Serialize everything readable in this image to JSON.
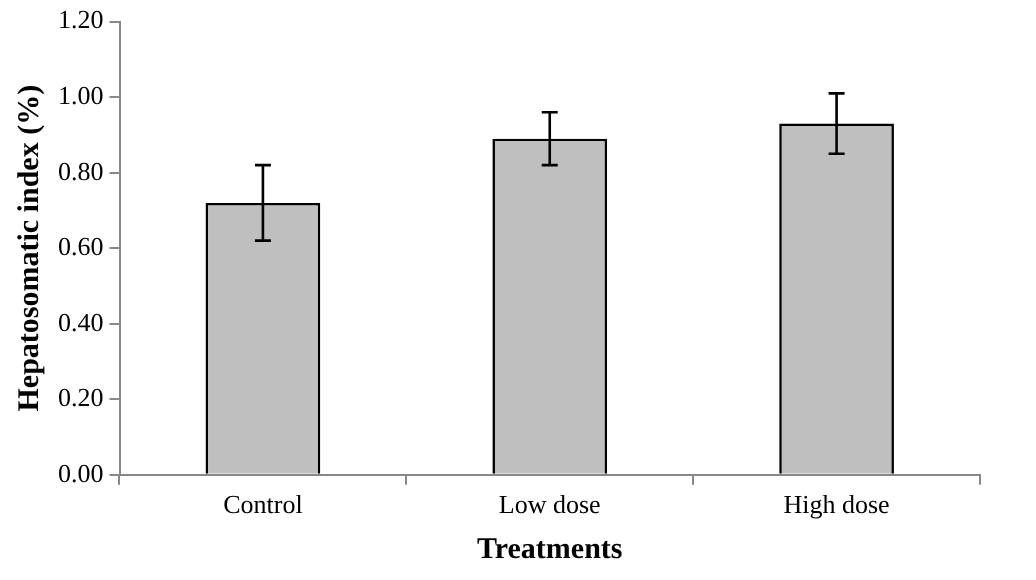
{
  "chart_data": {
    "type": "bar",
    "xlabel": "Treatments",
    "ylabel": "Hepatosomatic index (%)",
    "categories": [
      "Control",
      "Low dose",
      "High dose"
    ],
    "values": [
      0.72,
      0.89,
      0.93
    ],
    "errors": [
      0.1,
      0.07,
      0.08
    ],
    "color": "#bfbfbf",
    "ylim": [
      0,
      1.2
    ],
    "yticks": [
      {
        "value": 0,
        "label": "0.00"
      },
      {
        "value": 0.2,
        "label": "0.20"
      },
      {
        "value": 0.4,
        "label": "0.40"
      },
      {
        "value": 0.6,
        "label": "0.60"
      },
      {
        "value": 0.8,
        "label": "0.80"
      },
      {
        "value": 1,
        "label": "1.00"
      },
      {
        "value": 1.2,
        "label": "1.20"
      }
    ],
    "grid": false,
    "legend": false
  }
}
